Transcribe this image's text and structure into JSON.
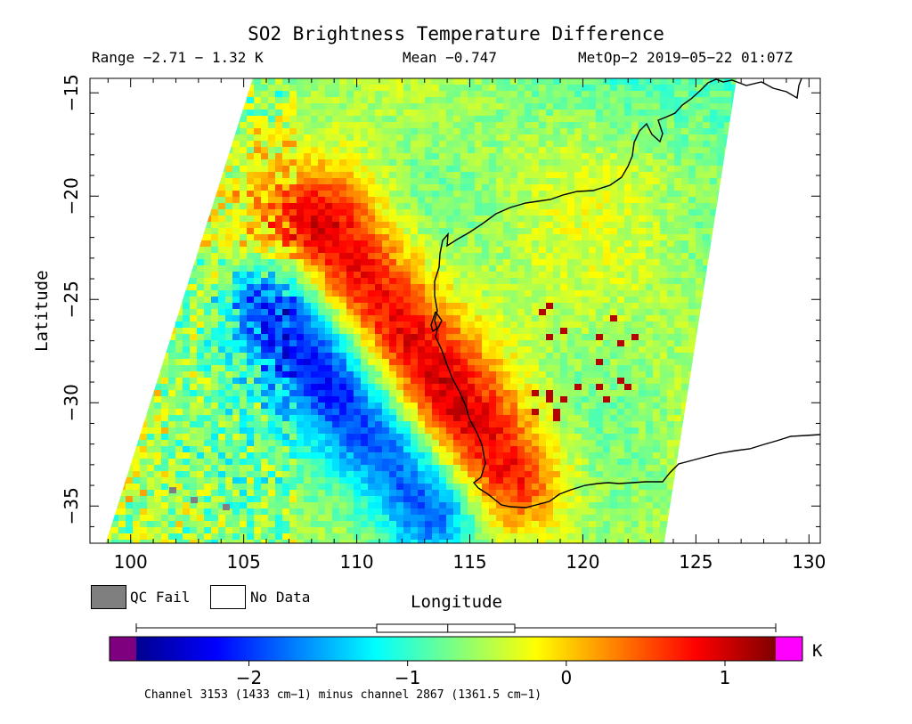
{
  "title": "SO2 Brightness Temperature Difference",
  "subtitle": {
    "range": "Range −2.71 − 1.32 K",
    "mean": "Mean −0.747",
    "satellite_time": "MetOp−2 2019−05−22 01:07Z"
  },
  "axes": {
    "xlabel": "Longitude",
    "ylabel": "Latitude",
    "x_ticks": [
      "100",
      "105",
      "110",
      "115",
      "120",
      "125",
      "130"
    ],
    "y_ticks": [
      "−15",
      "−20",
      "−25",
      "−30",
      "−35"
    ],
    "xlim": [
      98.2,
      130.5
    ],
    "ylim": [
      -36.8,
      -14.3
    ]
  },
  "legend": {
    "qc_fail": "QC Fail",
    "no_data": "No Data"
  },
  "colorbar": {
    "ticks": [
      "−2",
      "−1",
      "0",
      "1"
    ],
    "unit": "K",
    "min": -2.71,
    "max": 1.32,
    "mean": -0.747
  },
  "footnote": "Channel 3153 (1433 cm−1) minus channel 2867 (1361.5 cm−1)",
  "colors": {
    "qc_fail": "#7f7f7f",
    "no_data": "#ffffff",
    "under_range": "#7f007f",
    "over_range": "#ff00ff",
    "coastline": "#000000"
  },
  "chart_data": {
    "type": "heatmap",
    "title": "SO2 Brightness Temperature Difference",
    "xlabel": "Longitude",
    "ylabel": "Latitude",
    "xlim": [
      98.2,
      130.5
    ],
    "ylim": [
      -36.8,
      -14.3
    ],
    "value_range": [
      -2.71,
      1.32
    ],
    "mean": -0.747,
    "unit": "K",
    "colormap": "jet",
    "swath_corners": [
      {
        "lon": 105.4,
        "lat": -14.3
      },
      {
        "lon": 126.8,
        "lat": -14.3
      },
      {
        "lon": 123.6,
        "lat": -36.8
      },
      {
        "lon": 98.9,
        "lat": -36.8
      }
    ],
    "features": [
      {
        "label": "high anomaly band",
        "from": {
          "lon": 108.5,
          "lat": -21.5
        },
        "to": {
          "lon": 116.5,
          "lat": -33.5
        },
        "value": 1.0
      },
      {
        "label": "low anomaly band",
        "from": {
          "lon": 106.5,
          "lat": -25.5
        },
        "to": {
          "lon": 113.5,
          "lat": -35.0
        },
        "value": -2.3
      }
    ]
  }
}
